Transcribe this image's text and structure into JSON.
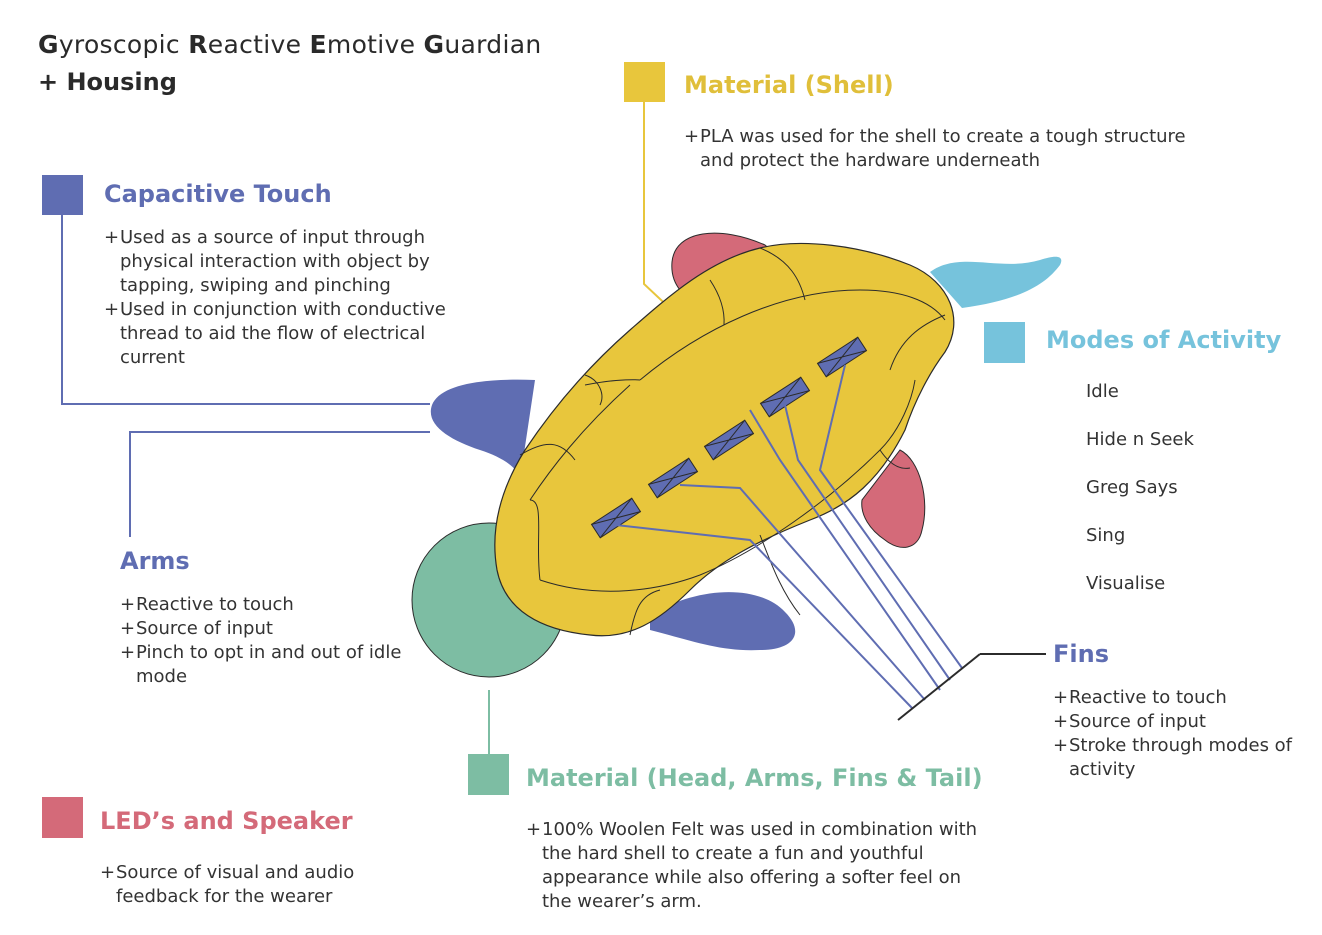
{
  "title": {
    "words": [
      {
        "initial": "G",
        "rest": "yroscopic"
      },
      {
        "initial": "R",
        "rest": "eactive"
      },
      {
        "initial": "E",
        "rest": "motive"
      },
      {
        "initial": "G",
        "rest": "uardian"
      }
    ],
    "subtitle": "+ Housing"
  },
  "colors": {
    "blue": "#5f6db2",
    "yellow": "#e8c63c",
    "teal": "#7dbda3",
    "pink": "#d46a79",
    "cyan": "#76c3dc",
    "outline": "#2b2b2b"
  },
  "sections": {
    "capacitive_touch": {
      "heading": "Capacitive Touch",
      "items": [
        "Used as a source of input through physical interaction with object by tapping, swiping and pinching",
        "Used in conjunction with conductive thread to aid the flow of electrical current"
      ]
    },
    "material_shell": {
      "heading": "Material (Shell)",
      "items": [
        "PLA was used for the shell to create a tough structure and protect the hardware underneath"
      ]
    },
    "modes": {
      "heading": "Modes of Activity",
      "items": [
        "Idle",
        "Hide n Seek",
        "Greg Says",
        "Sing",
        "Visualise"
      ]
    },
    "arms": {
      "heading": "Arms",
      "items": [
        "Reactive to touch",
        "Source of input",
        "Pinch to opt in and out of idle mode"
      ]
    },
    "fins": {
      "heading": "Fins",
      "items": [
        "Reactive to touch",
        "Source of input",
        "Stroke through modes of activity"
      ]
    },
    "material_felt": {
      "heading": "Material (Head, Arms, Fins & Tail)",
      "items": [
        "100% Woolen Felt was used in combination with the hard shell to create a fun and youthful appearance while also offering a softer feel on the wearer’s arm."
      ]
    },
    "leds": {
      "heading": "LED’s and Speaker",
      "items": [
        "Source of visual and audio feedback for the wearer"
      ]
    }
  }
}
